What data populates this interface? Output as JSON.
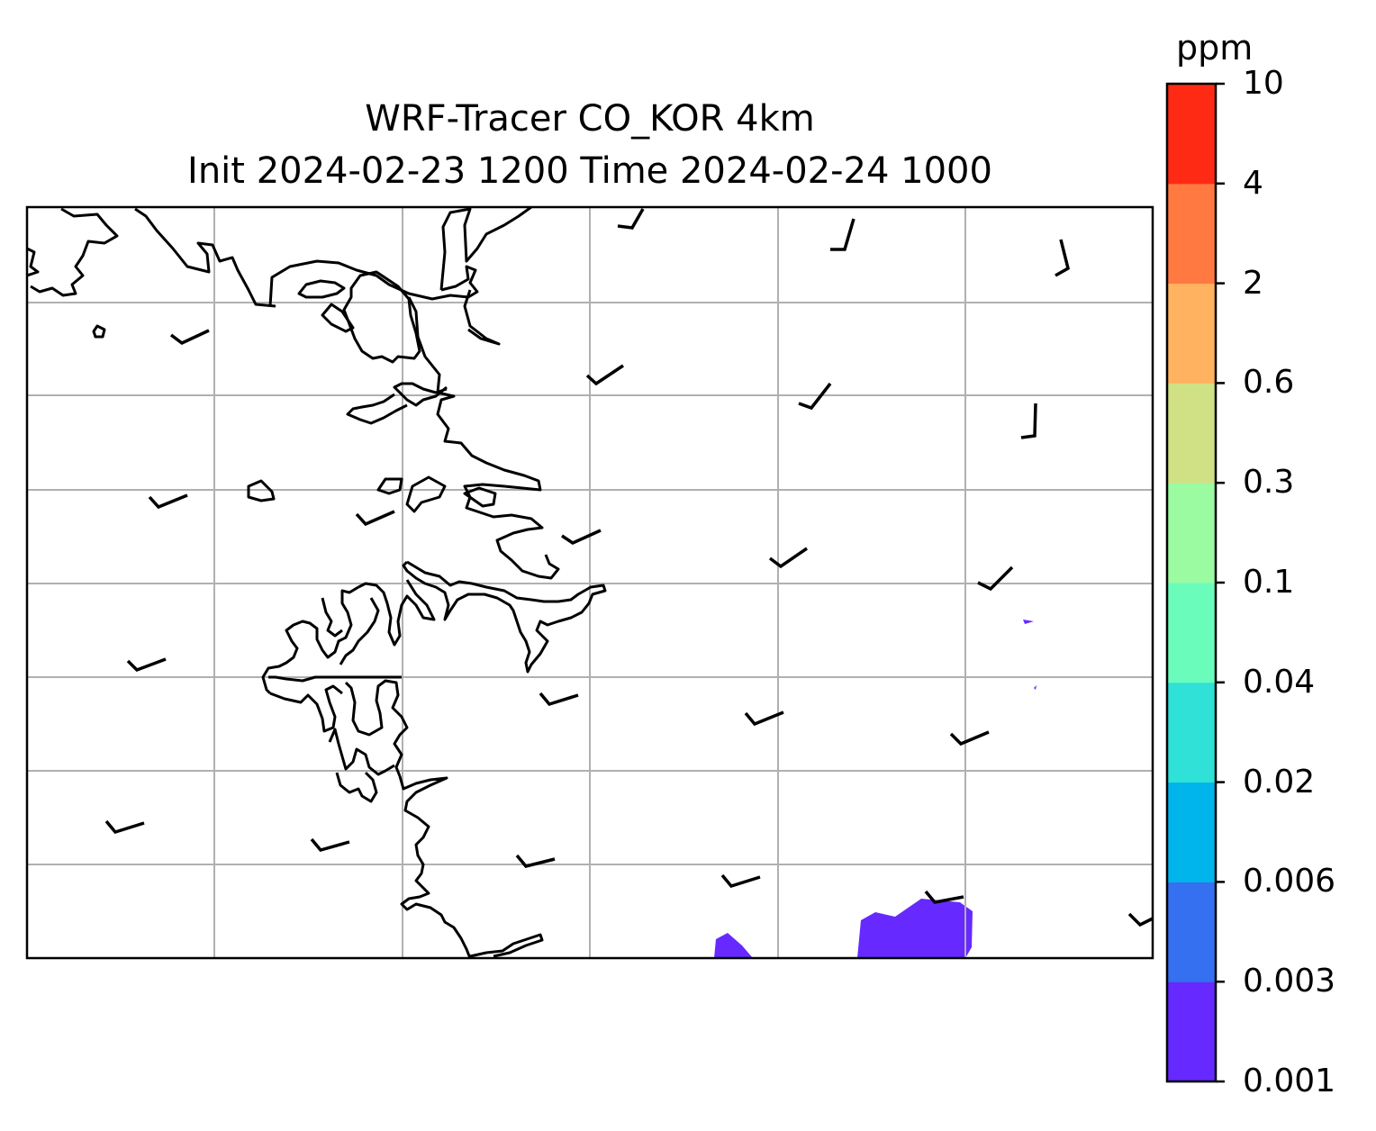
{
  "title": {
    "line1": "WRF-Tracer CO_KOR 4km",
    "line2": "Init 2024-02-23 1200 Time 2024-02-24 1000"
  },
  "colorbar": {
    "unit": "ppm",
    "levels": [
      "0.001",
      "0.003",
      "0.006",
      "0.02",
      "0.04",
      "0.1",
      "0.3",
      "0.6",
      "2",
      "4",
      "10"
    ],
    "colors": [
      "#6629ff",
      "#3470f0",
      "#00b5eb",
      "#2fe1d6",
      "#6afcbb",
      "#9bfba1",
      "#d0e185",
      "#ffb360",
      "#ff7941",
      "#ff2a14"
    ]
  },
  "map": {
    "grid": true,
    "wind_barbs": true,
    "colors": {
      "coastline": "#000000",
      "grid": "#b0b0b0",
      "tracer_lowest": "#6629ff"
    }
  }
}
